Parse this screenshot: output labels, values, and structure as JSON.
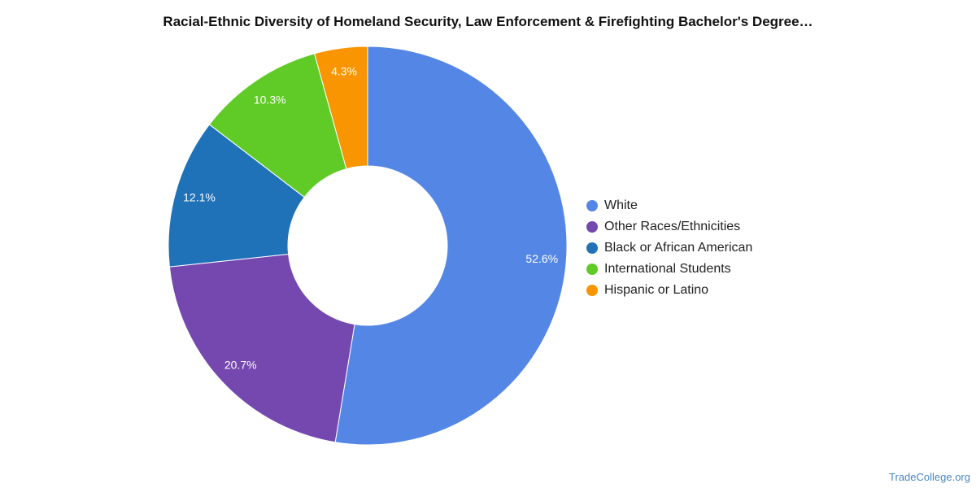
{
  "chart_data": {
    "type": "pie",
    "style": "donut",
    "title": "Racial-Ethnic Diversity of Homeland Security, Law Enforcement & Firefighting Bachelor's Degree…",
    "legend_position": "right",
    "slices": [
      {
        "label": "White",
        "value": 52.6,
        "value_label": "52.6%",
        "color": "#5487e5"
      },
      {
        "label": "Other Races/Ethnicities",
        "value": 20.7,
        "value_label": "20.7%",
        "color": "#7548b0"
      },
      {
        "label": "Black or African American",
        "value": 12.1,
        "value_label": "12.1%",
        "color": "#1f72b8"
      },
      {
        "label": "International Students",
        "value": 10.3,
        "value_label": "10.3%",
        "color": "#60cb26"
      },
      {
        "label": "Hispanic or Latino",
        "value": 4.3,
        "value_label": "4.3%",
        "color": "#f99500"
      }
    ]
  },
  "source_text": "TradeCollege.org"
}
